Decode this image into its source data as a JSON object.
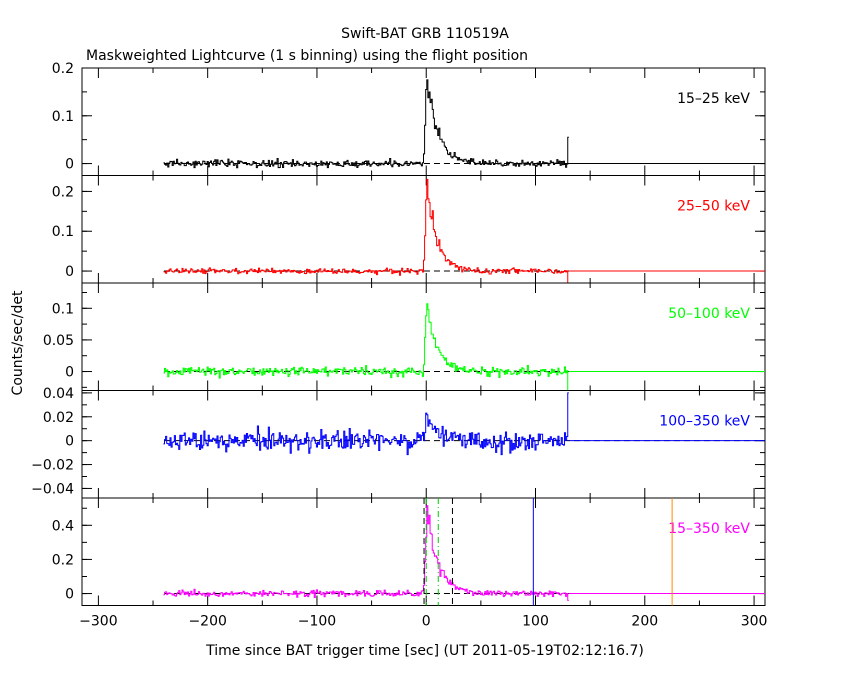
{
  "chart_data": {
    "type": "line",
    "title": "Swift-BAT GRB 110519A",
    "subtitle": "Maskweighted Lightcurve (1 s binning) using the flight position",
    "xlabel": "Time since BAT trigger time [sec] (UT 2011-05-19T02:12:16.7)",
    "ylabel": "Counts/sec/det",
    "xlim": [
      -315,
      310
    ],
    "xticks": [
      -300,
      -200,
      -100,
      0,
      100,
      200,
      300
    ],
    "data_range": [
      -240,
      130
    ],
    "panels": [
      {
        "label": "15–25 keV",
        "color": "#000000",
        "ylim": [
          -0.025,
          0.2
        ],
        "yticks": [
          0,
          0.1,
          0.2
        ],
        "ytick_labels": [
          "0",
          "0.1",
          "0.2"
        ],
        "noise": 0.006,
        "peak": 0.18,
        "peak_time": 1,
        "rise": 1.5,
        "decay": 10,
        "tail_spike": 0.055
      },
      {
        "label": "25–50 keV",
        "color": "#ff0000",
        "ylim": [
          -0.03,
          0.24
        ],
        "yticks": [
          0,
          0.1,
          0.2
        ],
        "ytick_labels": [
          "0",
          "0.1",
          "0.2"
        ],
        "noise": 0.006,
        "peak": 0.215,
        "peak_time": 1,
        "rise": 1.5,
        "decay": 9,
        "tail_spike": -0.03
      },
      {
        "label": "50–100 keV",
        "color": "#00ff00",
        "ylim": [
          -0.03,
          0.14
        ],
        "yticks": [
          0,
          0.05,
          0.1
        ],
        "ytick_labels": [
          "0",
          "0.05",
          "0.1"
        ],
        "noise": 0.006,
        "peak": 0.11,
        "peak_time": 1,
        "rise": 1.5,
        "decay": 9,
        "tail_spike": -0.03
      },
      {
        "label": "100–350 keV",
        "color": "#0000ff",
        "ylim": [
          -0.048,
          0.042
        ],
        "yticks": [
          -0.04,
          -0.02,
          0,
          0.02,
          0.04
        ],
        "ytick_labels": [
          "−0.04",
          "−0.02",
          "0",
          "0.02",
          "0.04"
        ],
        "noise": 0.007,
        "peak": 0.02,
        "peak_time": 1,
        "rise": 1.5,
        "decay": 8,
        "tail_spike": 0.04
      },
      {
        "label": "15–350 keV",
        "color": "#ff00ff",
        "ylim": [
          -0.07,
          0.56
        ],
        "yticks": [
          0,
          0.2,
          0.4
        ],
        "ytick_labels": [
          "0",
          "0.2",
          "0.4"
        ],
        "noise": 0.015,
        "peak": 0.5,
        "peak_time": 1,
        "rise": 1.5,
        "decay": 10,
        "tail_spike": -0.04
      }
    ],
    "markers": [
      {
        "x": -2,
        "style": "dashed",
        "color": "#000000"
      },
      {
        "x": 24,
        "style": "dashed",
        "color": "#000000"
      },
      {
        "x": 0,
        "style": "dash-dot",
        "color": "#00cc00"
      },
      {
        "x": 11,
        "style": "dash-dot",
        "color": "#00cc00"
      },
      {
        "x": 98,
        "style": "solid",
        "color": "#0000ff"
      },
      {
        "x": 225,
        "style": "solid",
        "color": "#ff8c00"
      }
    ]
  }
}
